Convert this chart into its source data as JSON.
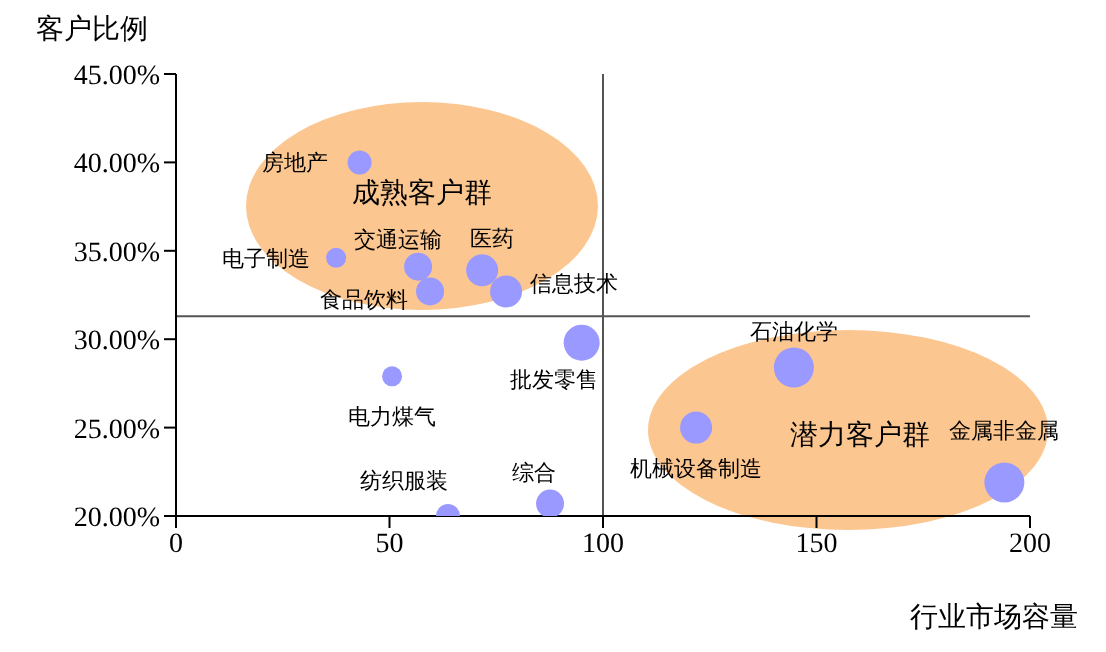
{
  "chart_data": {
    "type": "bubble",
    "xlabel": "行业市场容量",
    "ylabel": "客户比例",
    "xlim": [
      0,
      200
    ],
    "xticks": [
      0,
      50,
      100,
      150,
      200
    ],
    "ylim": [
      20,
      45
    ],
    "yticks": [
      {
        "value": 20,
        "label": "20.00%"
      },
      {
        "value": 25,
        "label": "25.00%"
      },
      {
        "value": 30,
        "label": "30.00%"
      },
      {
        "value": 35,
        "label": "35.00%"
      },
      {
        "value": 40,
        "label": "40.00%"
      },
      {
        "value": 45,
        "label": "45.00%"
      }
    ],
    "grid": false,
    "legend": false,
    "marker": "circle",
    "series": [
      {
        "color": "#9999ff",
        "x": [
          43,
          37.5,
          56.7,
          71.7,
          77.3,
          59.5,
          95,
          50.6,
          63.7,
          87.6,
          144.7,
          121.8,
          194
        ],
        "values": [
          40,
          34.6,
          34.1,
          33.9,
          32.7,
          32.7,
          29.8,
          27.9,
          20,
          20.7,
          28.4,
          25,
          21.9
        ],
        "sizes": [
          0.36,
          0.25,
          0.49,
          0.64,
          0.64,
          0.49,
          0.81,
          0.25,
          0.36,
          0.49,
          1,
          0.64,
          1
        ]
      }
    ],
    "ref_lines": [
      {
        "axis": "x",
        "value": 100,
        "color": "#555555"
      },
      {
        "axis": "y",
        "value": 31.3,
        "color": "#555555"
      }
    ],
    "annotations": [
      {
        "text": "房地产",
        "x": 43,
        "y": 40
      },
      {
        "text": "电子制造",
        "x": 37.5,
        "y": 34.6
      },
      {
        "text": "交通运输",
        "x": 56.7,
        "y": 34.1
      },
      {
        "text": "医药",
        "x": 71.7,
        "y": 33.9
      },
      {
        "text": "信息技术",
        "x": 77.3,
        "y": 32.7
      },
      {
        "text": "食品饮料",
        "x": 59.5,
        "y": 32.7
      },
      {
        "text": "批发零售",
        "x": 95,
        "y": 29.8
      },
      {
        "text": "电力煤气",
        "x": 50.6,
        "y": 27.9
      },
      {
        "text": "纺织服装",
        "x": 63.7,
        "y": 20
      },
      {
        "text": "综合",
        "x": 87.6,
        "y": 20.7
      },
      {
        "text": "石油化学",
        "x": 144.7,
        "y": 28.4
      },
      {
        "text": "机械设备制造",
        "x": 121.8,
        "y": 25
      },
      {
        "text": "金属非金属",
        "x": 194,
        "y": 21.9
      },
      "成熟客户群",
      "潜力客户群"
    ]
  }
}
